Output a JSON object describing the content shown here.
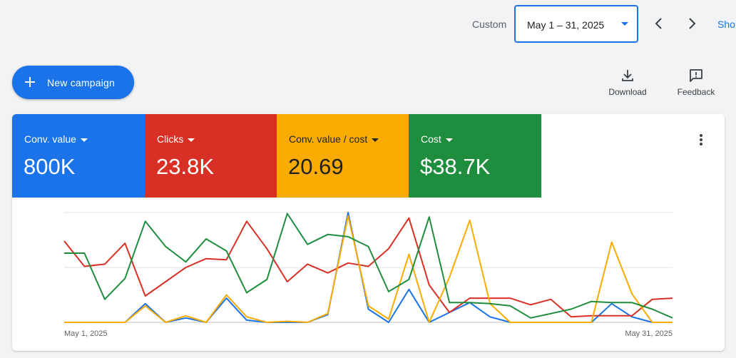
{
  "toolbar": {
    "custom_label": "Custom",
    "date_range": "May 1 – 31, 2025",
    "show_link": "Sho"
  },
  "actions": {
    "new_campaign": "New campaign",
    "download": "Download",
    "feedback": "Feedback"
  },
  "metrics": [
    {
      "name": "Conv. value",
      "value": "800K",
      "color": "#1a73e8"
    },
    {
      "name": "Clicks",
      "value": "23.8K",
      "color": "#d93025"
    },
    {
      "name": "Conv. value / cost",
      "value": "20.69",
      "color": "#f9ab00"
    },
    {
      "name": "Cost",
      "value": "$38.7K",
      "color": "#1e8e3e"
    }
  ],
  "chart_data": {
    "type": "line",
    "x_start_label": "May 1, 2025",
    "x_end_label": "May 31, 2025",
    "x": [
      1,
      2,
      3,
      4,
      5,
      6,
      7,
      8,
      9,
      10,
      11,
      12,
      13,
      14,
      15,
      16,
      17,
      18,
      19,
      20,
      21,
      22,
      23,
      24,
      25,
      26,
      27,
      28,
      29,
      30,
      31
    ],
    "grid": true,
    "ylim": [
      0,
      100
    ],
    "series": [
      {
        "color": "#1a73e8",
        "values": [
          0,
          0,
          0,
          0,
          17,
          0,
          4,
          0,
          22,
          2,
          0,
          0,
          0,
          7,
          100,
          12,
          0,
          30,
          0,
          9,
          18,
          5,
          0,
          0,
          0,
          0,
          0,
          17,
          5,
          0,
          0
        ]
      },
      {
        "color": "#d93025",
        "values": [
          74,
          51,
          53,
          72,
          24,
          37,
          50,
          58,
          57,
          92,
          67,
          37,
          53,
          45,
          54,
          51,
          67,
          95,
          34,
          9,
          22,
          22,
          22,
          16,
          21,
          5,
          6,
          6,
          6,
          21,
          22
        ]
      },
      {
        "color": "#f9ab00",
        "values": [
          0,
          0,
          0,
          0,
          15,
          0,
          6,
          0,
          25,
          5,
          0,
          1,
          0,
          8,
          97,
          15,
          3,
          62,
          0,
          41,
          93,
          17,
          0,
          0,
          0,
          0,
          0,
          73,
          26,
          0,
          0
        ]
      },
      {
        "color": "#1e8e3e",
        "values": [
          63,
          63,
          21,
          40,
          92,
          69,
          55,
          76,
          65,
          27,
          39,
          99,
          71,
          80,
          78,
          69,
          28,
          39,
          96,
          18,
          18,
          17,
          15,
          4,
          8,
          12,
          19,
          18,
          18,
          12,
          4
        ]
      }
    ]
  }
}
